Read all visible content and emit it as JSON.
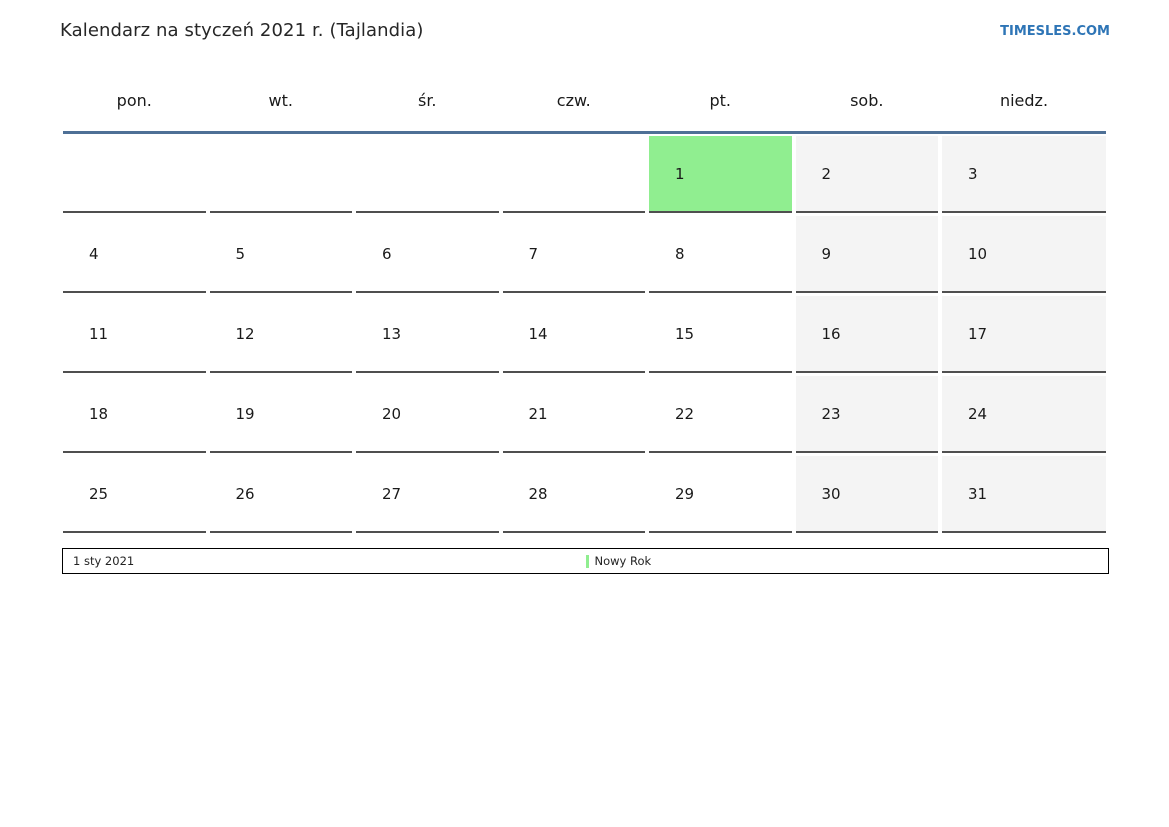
{
  "header": {
    "title": "Kalendarz na styczeń 2021 r. (Tajlandia)",
    "site_link": "TIMESLES.COM"
  },
  "calendar": {
    "weekdays": [
      "pon.",
      "wt.",
      "śr.",
      "czw.",
      "pt.",
      "sob.",
      "niedz."
    ],
    "weeks": [
      [
        "",
        "",
        "",
        "",
        "1",
        "2",
        "3"
      ],
      [
        "4",
        "5",
        "6",
        "7",
        "8",
        "9",
        "10"
      ],
      [
        "11",
        "12",
        "13",
        "14",
        "15",
        "16",
        "17"
      ],
      [
        "18",
        "19",
        "20",
        "21",
        "22",
        "23",
        "24"
      ],
      [
        "25",
        "26",
        "27",
        "28",
        "29",
        "30",
        "31"
      ]
    ],
    "weekend_columns": [
      5,
      6
    ],
    "holiday_days": [
      "1"
    ]
  },
  "legend": {
    "date": "1 sty 2021",
    "event": "Nowy Rok"
  },
  "colors": {
    "holiday_green": "#90ee90",
    "weekend_gray": "#f4f4f4",
    "header_line_blue": "#4e7096",
    "link_blue": "#2e75b6",
    "cell_border_gray": "#4f4f4f"
  }
}
